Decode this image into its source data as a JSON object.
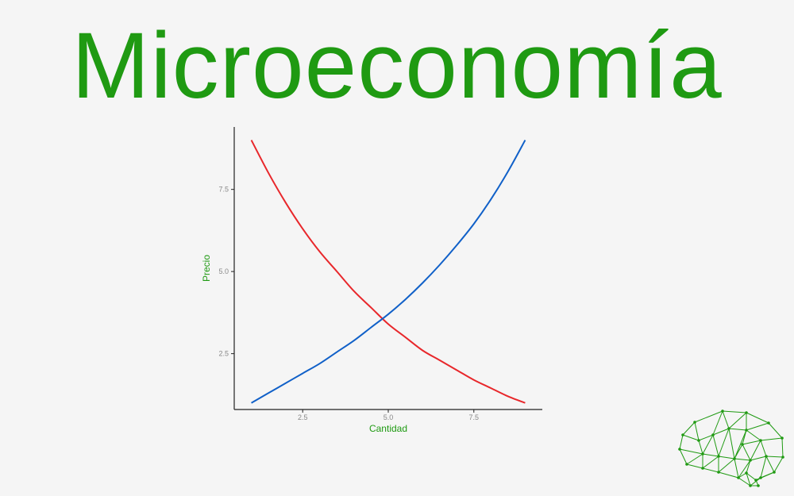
{
  "title": "Microeconomía",
  "colors": {
    "title": "#1f9a12",
    "axis_label": "#1f9a12",
    "demand": "#e8272b",
    "supply": "#1060c8",
    "tick_label": "#888888",
    "axis_line": "#222222",
    "logo": "#1f9a12"
  },
  "chart_data": {
    "type": "line",
    "xlabel": "Cantidad",
    "ylabel": "Precio",
    "xlim": [
      0.5,
      9.5
    ],
    "ylim": [
      0.8,
      9.4
    ],
    "x_ticks": [
      2.5,
      5.0,
      7.5
    ],
    "x_tick_labels": [
      "2.5",
      "5.0",
      "7.5"
    ],
    "y_ticks": [
      2.5,
      5.0,
      7.5
    ],
    "y_tick_labels": [
      "2.5",
      "5.0",
      "7.5"
    ],
    "grid": false,
    "series": [
      {
        "color": "#e8272b",
        "x": [
          1,
          1.5,
          2,
          2.5,
          3,
          3.5,
          4,
          4.5,
          5,
          5.5,
          6,
          6.5,
          7,
          7.5,
          8,
          8.5,
          9
        ],
        "y": [
          9.0,
          8.0,
          7.1,
          6.3,
          5.6,
          5.0,
          4.4,
          3.9,
          3.4,
          3.0,
          2.6,
          2.3,
          2.0,
          1.7,
          1.45,
          1.2,
          1.0
        ]
      },
      {
        "color": "#1060c8",
        "x": [
          1,
          1.5,
          2,
          2.5,
          3,
          3.5,
          4,
          4.5,
          5,
          5.5,
          6,
          6.5,
          7,
          7.5,
          8,
          8.5,
          9
        ],
        "y": [
          1.0,
          1.3,
          1.6,
          1.9,
          2.2,
          2.55,
          2.9,
          3.3,
          3.7,
          4.15,
          4.65,
          5.2,
          5.8,
          6.45,
          7.2,
          8.05,
          9.0
        ]
      }
    ]
  },
  "logo": {
    "icon": "brain-network-icon"
  }
}
